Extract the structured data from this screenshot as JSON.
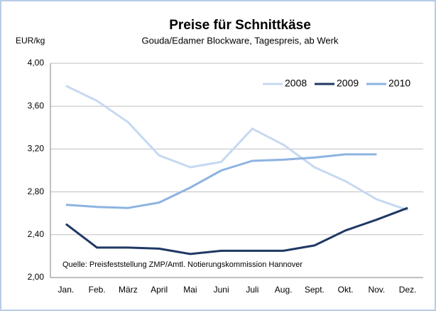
{
  "chart_data": {
    "type": "line",
    "title": "Preise für Schnittkäse",
    "subtitle": "Gouda/Edamer Blockware, Tagespreis, ab Werk",
    "y_label": "EUR/kg",
    "annotation": "Quelle: Preisfeststellung ZMP/Amtl. Notierungskommission Hannover",
    "categories": [
      "Jan.",
      "Feb.",
      "März",
      "April",
      "Mai",
      "Juni",
      "Juli",
      "Aug.",
      "Sept.",
      "Okt.",
      "Nov.",
      "Dez."
    ],
    "series": [
      {
        "name": "2008",
        "color": "#c6d9f1",
        "values": [
          3.79,
          3.65,
          3.45,
          3.14,
          3.03,
          3.08,
          3.39,
          3.24,
          3.03,
          2.9,
          2.73,
          2.63
        ]
      },
      {
        "name": "2009",
        "color": "#1f3864",
        "values": [
          2.5,
          2.28,
          2.28,
          2.27,
          2.22,
          2.25,
          2.25,
          2.25,
          2.3,
          2.44,
          2.54,
          2.65
        ]
      },
      {
        "name": "2010",
        "color": "#8db3e2",
        "values": [
          2.68,
          2.66,
          2.65,
          2.7,
          2.84,
          3.0,
          3.09,
          3.1,
          3.12,
          3.15,
          3.15,
          null
        ]
      }
    ],
    "ylim": [
      2.0,
      4.0
    ],
    "yticks": [
      {
        "value": 2.0,
        "label": "2,00"
      },
      {
        "value": 2.4,
        "label": "2,40"
      },
      {
        "value": 2.8,
        "label": "2,80"
      },
      {
        "value": 3.2,
        "label": "3,20"
      },
      {
        "value": 3.6,
        "label": "3,60"
      },
      {
        "value": 4.0,
        "label": "4,00"
      }
    ],
    "grid": true,
    "legend": "top-right"
  }
}
